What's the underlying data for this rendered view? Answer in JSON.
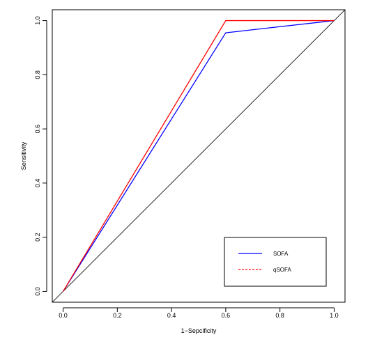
{
  "chart_data": {
    "type": "line",
    "title": "",
    "xlabel": "1−Sepcificity",
    "ylabel": "Sensitivity",
    "xlim": [
      -0.04,
      1.04
    ],
    "ylim": [
      -0.04,
      1.04
    ],
    "x_ticks": [
      0.0,
      0.2,
      0.4,
      0.6,
      0.8,
      1.0
    ],
    "x_tick_labels": [
      "0.0",
      "0.2",
      "0.4",
      "0.6",
      "0.8",
      "1.0"
    ],
    "y_ticks": [
      0.0,
      0.2,
      0.4,
      0.6,
      0.8,
      1.0
    ],
    "y_tick_labels": [
      "0.0",
      "0.2",
      "0.4",
      "0.6",
      "0.8",
      "1.0"
    ],
    "grid": false,
    "legend_position": "bottom-right",
    "series": [
      {
        "name": "SOFA",
        "color": "#0000ff",
        "style": "solid",
        "x": [
          0.0,
          0.6,
          1.0
        ],
        "y": [
          0.0,
          0.955,
          1.0
        ]
      },
      {
        "name": "qSOFA",
        "color": "#ff0000",
        "style": "dashed",
        "x": [
          0.0,
          0.6,
          1.0
        ],
        "y": [
          0.0,
          1.0,
          1.0
        ]
      }
    ],
    "reference_line": {
      "color": "#000000",
      "x": [
        -0.04,
        1.04
      ],
      "y": [
        -0.04,
        1.04
      ]
    }
  }
}
